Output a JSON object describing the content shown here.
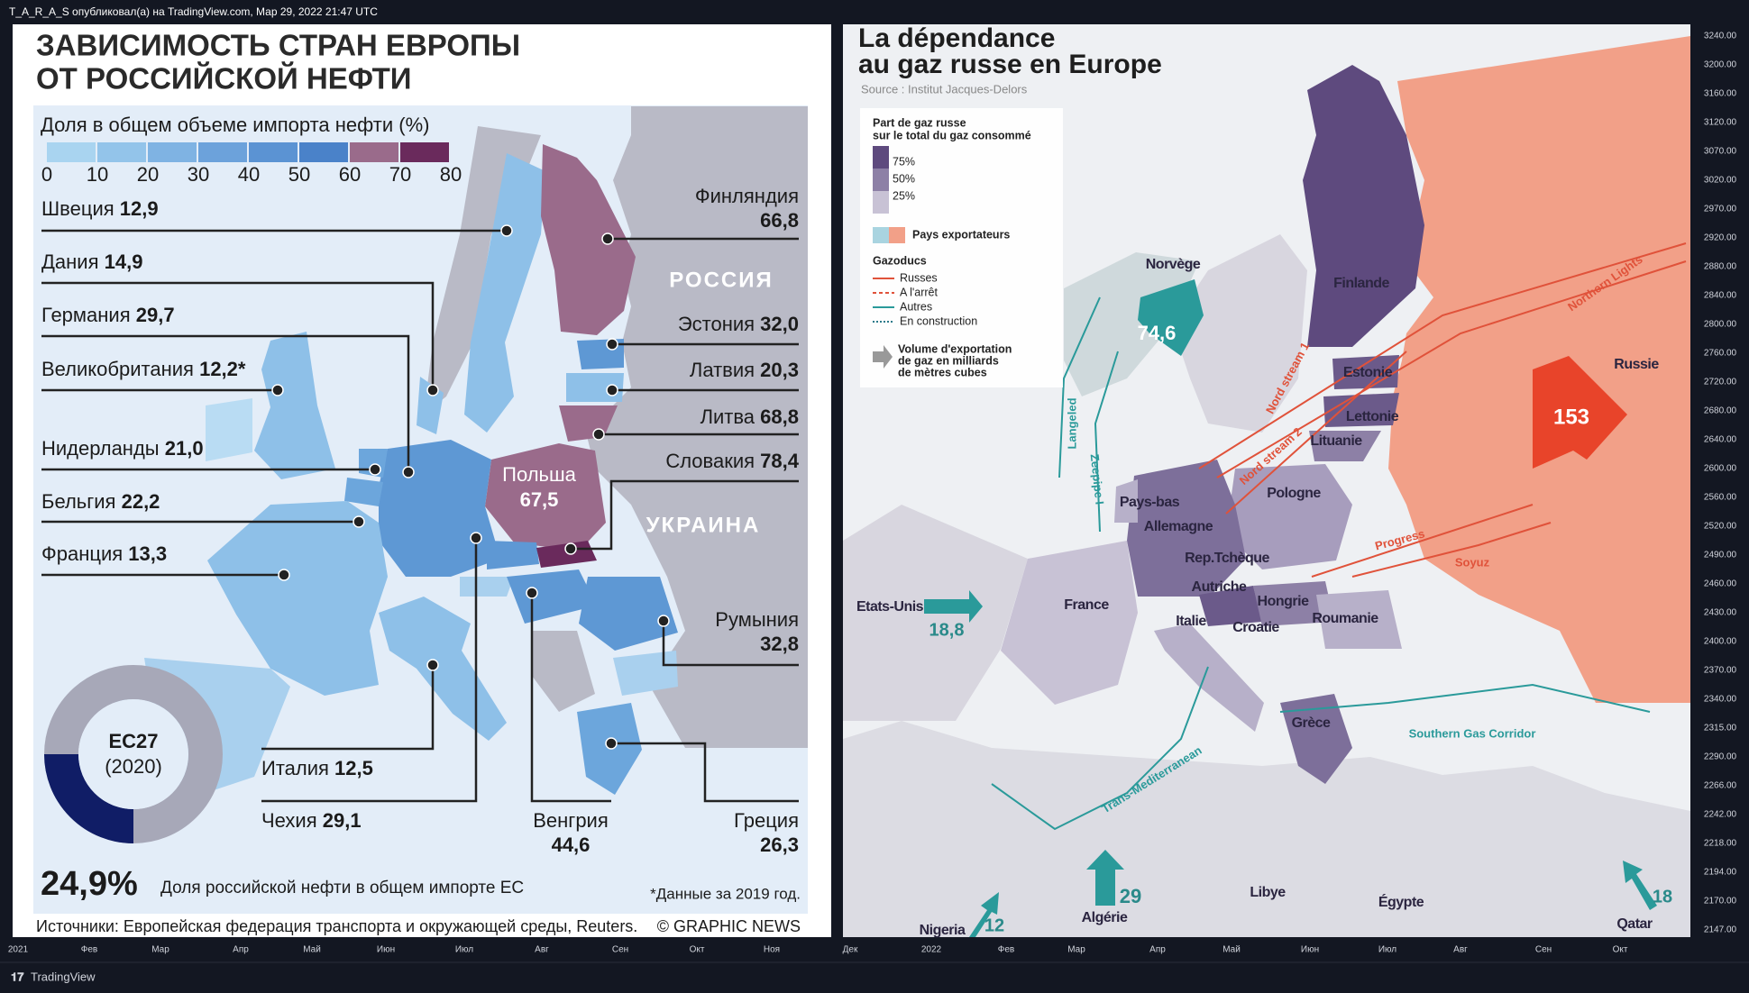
{
  "topbar": {
    "text": "T_A_R_A_S опубликовал(а) на TradingView.com, Мар 29, 2022 21:47 UTC"
  },
  "left": {
    "title": [
      "ЗАВИСИМОСТЬ СТРАН ЕВРОПЫ",
      "ОТ РОССИЙСКОЙ НЕФТИ"
    ],
    "legend_title": "Доля в общем объеме импорта нефти (%)",
    "legend_ticks": [
      0,
      10,
      20,
      30,
      40,
      50,
      60,
      70,
      80
    ],
    "countries": [
      {
        "name": "Швеция",
        "value": "12,9"
      },
      {
        "name": "Дания",
        "value": "14,9"
      },
      {
        "name": "Германия",
        "value": "29,7"
      },
      {
        "name": "Великобритания",
        "value": "12,2*"
      },
      {
        "name": "Нидерланды",
        "value": "21,0"
      },
      {
        "name": "Бельгия",
        "value": "22,2"
      },
      {
        "name": "Франция",
        "value": "13,3"
      },
      {
        "name": "Финляндия",
        "value": "66,8"
      },
      {
        "name": "Эстония",
        "value": "32,0"
      },
      {
        "name": "Латвия",
        "value": "20,3"
      },
      {
        "name": "Литва",
        "value": "68,8"
      },
      {
        "name": "Словакия",
        "value": "78,4"
      },
      {
        "name": "Румыния",
        "value": "32,8"
      },
      {
        "name": "Италия",
        "value": "12,5"
      },
      {
        "name": "Чехия",
        "value": "29,1"
      },
      {
        "name": "Венгрия",
        "value": "44,6"
      },
      {
        "name": "Греция",
        "value": "26,3"
      }
    ],
    "map_labels": [
      "РОССИЯ",
      "УКРАИНА"
    ],
    "poland": {
      "name": "Польша",
      "value": "67,5"
    },
    "donut": {
      "title": "ЕС27",
      "year": "(2020)"
    },
    "share": {
      "value": "24,9%",
      "text": "Доля российской нефти в общем импорте ЕС"
    },
    "note": "*Данные за 2019 год.",
    "sources": "Источники: Европейская федерация транспорта и окружающей среды, Reuters.",
    "credit": "© GRAPHIC NEWS"
  },
  "right": {
    "title": [
      "La dépendance",
      "au gaz russe en Europe"
    ],
    "source": "Source : Institut Jacques-Delors",
    "legend": {
      "share_title": [
        "Part de gaz russe",
        "sur le total du gaz consommé"
      ],
      "share_ticks": [
        "75%",
        "50%",
        "25%"
      ],
      "exporters": "Pays exportateurs",
      "pipelines_title": "Gazoducs",
      "pipelines": [
        "Russes",
        "A l'arrêt",
        "Autres",
        "En construction"
      ],
      "volume": [
        "Volume d'exportation",
        "de gaz en milliards",
        "de mètres cubes"
      ]
    },
    "countries": [
      "Norvège",
      "Finlande",
      "Russie",
      "Estonie",
      "Lettonie",
      "Lituanie",
      "Pologne",
      "Pays-bas",
      "Allemagne",
      "Rep.Tchèque",
      "Autriche",
      "Hongrie",
      "Roumanie",
      "France",
      "Italie",
      "Croatie",
      "Grèce",
      "Libye",
      "Égypte"
    ],
    "exports": [
      {
        "name": "Norvège",
        "value": "74,6"
      },
      {
        "name": "Russie",
        "value": "153"
      },
      {
        "name": "Etats-Unis",
        "value": "18,8"
      },
      {
        "name": "Algérie",
        "value": "29"
      },
      {
        "name": "Nigeria",
        "value": "12"
      },
      {
        "name": "Qatar",
        "value": "18"
      }
    ],
    "pipeline_labels": [
      "Nord stream 1",
      "Nord stream 2",
      "Langeled",
      "Zeepipe I",
      "Progress",
      "Soyuz",
      "Northern Lights",
      "Southern Gas Corridor",
      "Trans-Mediterranean"
    ]
  },
  "price_axis": [
    "3240.00",
    "3200.00",
    "3160.00",
    "3120.00",
    "3070.00",
    "3020.00",
    "2970.00",
    "2920.00",
    "2880.00",
    "2840.00",
    "2800.00",
    "2760.00",
    "2720.00",
    "2680.00",
    "2640.00",
    "2600.00",
    "2560.00",
    "2520.00",
    "2490.00",
    "2460.00",
    "2430.00",
    "2400.00",
    "2370.00",
    "2340.00",
    "2315.00",
    "2290.00",
    "2266.00",
    "2242.00",
    "2218.00",
    "2194.00",
    "2170.00",
    "2147.00"
  ],
  "time_axis": [
    "2021",
    "Фев",
    "Мар",
    "Апр",
    "Май",
    "Июн",
    "Июл",
    "Авг",
    "Сен",
    "Окт",
    "Ноя",
    "Дек",
    "2022",
    "Фев",
    "Мар",
    "Апр",
    "Май",
    "Июн",
    "Июл",
    "Авг",
    "Сен",
    "Окт"
  ],
  "brand": "TradingView"
}
